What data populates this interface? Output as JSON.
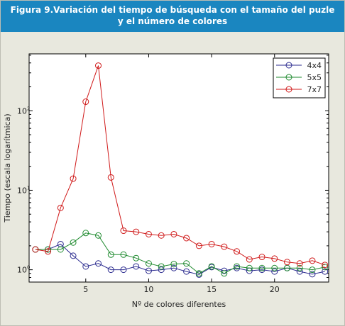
{
  "header": {
    "title_line1": "Figura 9.Variación del tiempo de búsqueda con el tamaño del puzle",
    "title_line2": "y el número de colores"
  },
  "chart_data": {
    "type": "line",
    "title": "Figura 9.Variación del tiempo de búsqueda con el tamaño del puzle y el número de colores",
    "xlabel": "Nº de colores diferentes",
    "ylabel": "Tiempo (escala logarítmica)",
    "xlim": [
      0.5,
      24.3
    ],
    "ylim": [
      0.7,
      520
    ],
    "yscale": "log",
    "grid": false,
    "legend_position": "top-right",
    "x_ticks": [
      5,
      10,
      15,
      20
    ],
    "y_ticks": [
      {
        "value": 1,
        "label": "10",
        "exp": "0"
      },
      {
        "value": 10,
        "label": "10",
        "exp": "1"
      },
      {
        "value": 100,
        "label": "10",
        "exp": "2"
      }
    ],
    "x": [
      1,
      2,
      3,
      4,
      5,
      6,
      7,
      8,
      9,
      10,
      11,
      12,
      13,
      14,
      15,
      16,
      17,
      18,
      19,
      20,
      21,
      22,
      23,
      24
    ],
    "series": [
      {
        "name": "4x4",
        "color": "#2b2b8f",
        "values": [
          1.8,
          1.8,
          2.1,
          1.5,
          1.1,
          1.2,
          1.0,
          1.0,
          1.1,
          0.97,
          1.0,
          1.05,
          0.95,
          0.87,
          1.08,
          0.97,
          1.05,
          0.97,
          1.0,
          0.95,
          1.05,
          0.95,
          0.88,
          0.95
        ]
      },
      {
        "name": "5x5",
        "color": "#1e8a2e",
        "values": [
          1.8,
          1.8,
          1.8,
          2.2,
          2.9,
          2.7,
          1.55,
          1.55,
          1.4,
          1.2,
          1.1,
          1.18,
          1.2,
          0.9,
          1.1,
          0.9,
          1.1,
          1.05,
          1.05,
          1.05,
          1.05,
          1.05,
          1.0,
          1.08
        ]
      },
      {
        "name": "7x7",
        "color": "#d01a1a",
        "values": [
          1.8,
          1.7,
          6.0,
          14.0,
          130,
          370,
          14.5,
          3.1,
          3.0,
          2.8,
          2.7,
          2.8,
          2.5,
          2.0,
          2.1,
          1.95,
          1.7,
          1.35,
          1.45,
          1.38,
          1.25,
          1.2,
          1.3,
          1.15
        ]
      }
    ]
  }
}
